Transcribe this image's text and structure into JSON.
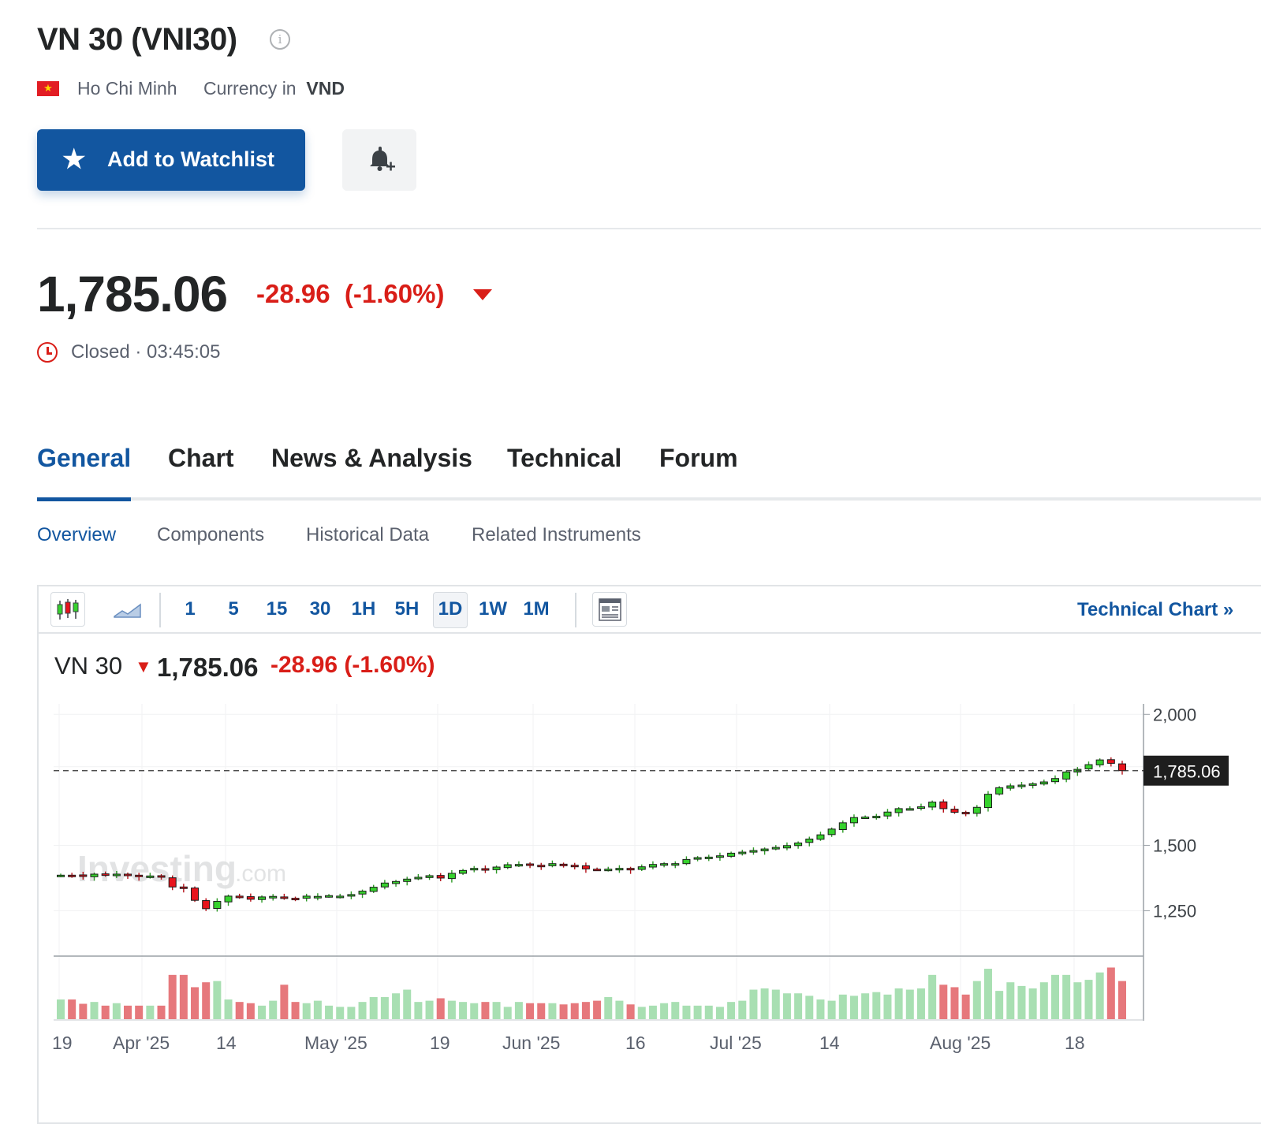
{
  "header": {
    "title": "VN 30 (VNI30)",
    "info_icon": "info-icon",
    "exchange": "Ho Chi Minh",
    "currency_label": "Currency in",
    "currency": "VND",
    "flag": "vietnam-flag"
  },
  "actions": {
    "watchlist_label": "Add to Watchlist",
    "watchlist_icon": "star-icon",
    "alert_icon": "bell-plus-icon"
  },
  "quote": {
    "price": "1,785.06",
    "change": "-28.96",
    "change_pct": "(-1.60%)",
    "status": "Closed · 03:45:05",
    "down_color": "#d91e18",
    "up_color": "#1256a0"
  },
  "tabs": [
    "General",
    "Chart",
    "News & Analysis",
    "Technical",
    "Forum"
  ],
  "subtabs": [
    "Overview",
    "Components",
    "Historical Data",
    "Related Instruments"
  ],
  "chart_toolbar": {
    "intervals": [
      "1",
      "5",
      "15",
      "30",
      "1H",
      "5H",
      "1D",
      "1W",
      "1M"
    ],
    "selected_interval": "1D",
    "technical_chart_link": "Technical Chart »"
  },
  "chart_header": {
    "name": "VN 30",
    "arrow": "▼",
    "price": "1,785.06",
    "change": "-28.96",
    "change_pct": "(-1.60%)"
  },
  "watermark": {
    "brand": "Investing",
    "suffix": ".com"
  },
  "chart_data": {
    "type": "candlestick",
    "title": "VN 30",
    "ylim": [
      1080,
      2040
    ],
    "yticks": [
      2000,
      1500,
      1250
    ],
    "ytick_labels": [
      "2,000",
      "1,500",
      "1,250"
    ],
    "last_price": 1785.06,
    "last_price_label": "1,785.06",
    "xtick_labels": [
      "19",
      "Apr '25",
      "14",
      "May '25",
      "19",
      "Jun '25",
      "16",
      "Jul '25",
      "14",
      "Aug '25",
      "18"
    ],
    "grid": true,
    "up_color": "#36d22d",
    "down_color": "#e8141c",
    "volume_up_color": "#a8dfb2",
    "volume_down_color": "#e6787c",
    "close": [
      1386,
      1385,
      1381,
      1390,
      1386,
      1390,
      1384,
      1380,
      1383,
      1378,
      1341,
      1335,
      1290,
      1258,
      1286,
      1306,
      1302,
      1294,
      1303,
      1305,
      1298,
      1296,
      1306,
      1305,
      1308,
      1306,
      1312,
      1325,
      1340,
      1356,
      1362,
      1371,
      1378,
      1384,
      1375,
      1393,
      1404,
      1412,
      1406,
      1417,
      1426,
      1427,
      1425,
      1421,
      1430,
      1424,
      1420,
      1410,
      1408,
      1409,
      1412,
      1406,
      1418,
      1427,
      1430,
      1430,
      1446,
      1453,
      1455,
      1460,
      1470,
      1474,
      1480,
      1486,
      1492,
      1499,
      1509,
      1524,
      1540,
      1562,
      1586,
      1606,
      1608,
      1611,
      1627,
      1640,
      1640,
      1647,
      1665,
      1640,
      1626,
      1620,
      1645,
      1695,
      1720,
      1727,
      1730,
      1735,
      1742,
      1755,
      1780,
      1790,
      1808,
      1826,
      1813,
      1785.06
    ],
    "volume_scale": "relative",
    "volume": [
      0.32,
      0.32,
      0.25,
      0.28,
      0.22,
      0.26,
      0.22,
      0.22,
      0.22,
      0.22,
      0.72,
      0.72,
      0.52,
      0.6,
      0.62,
      0.32,
      0.28,
      0.26,
      0.22,
      0.3,
      0.56,
      0.28,
      0.26,
      0.3,
      0.22,
      0.2,
      0.2,
      0.28,
      0.36,
      0.36,
      0.42,
      0.48,
      0.28,
      0.3,
      0.34,
      0.3,
      0.28,
      0.26,
      0.28,
      0.28,
      0.2,
      0.28,
      0.26,
      0.26,
      0.26,
      0.24,
      0.26,
      0.28,
      0.3,
      0.36,
      0.3,
      0.24,
      0.2,
      0.22,
      0.26,
      0.28,
      0.22,
      0.22,
      0.22,
      0.2,
      0.28,
      0.3,
      0.48,
      0.5,
      0.48,
      0.42,
      0.42,
      0.38,
      0.32,
      0.3,
      0.4,
      0.38,
      0.42,
      0.44,
      0.4,
      0.5,
      0.48,
      0.5,
      0.72,
      0.56,
      0.52,
      0.4,
      0.62,
      0.82,
      0.46,
      0.6,
      0.54,
      0.5,
      0.6,
      0.72,
      0.72,
      0.6,
      0.64,
      0.76,
      0.84,
      0.62
    ]
  }
}
